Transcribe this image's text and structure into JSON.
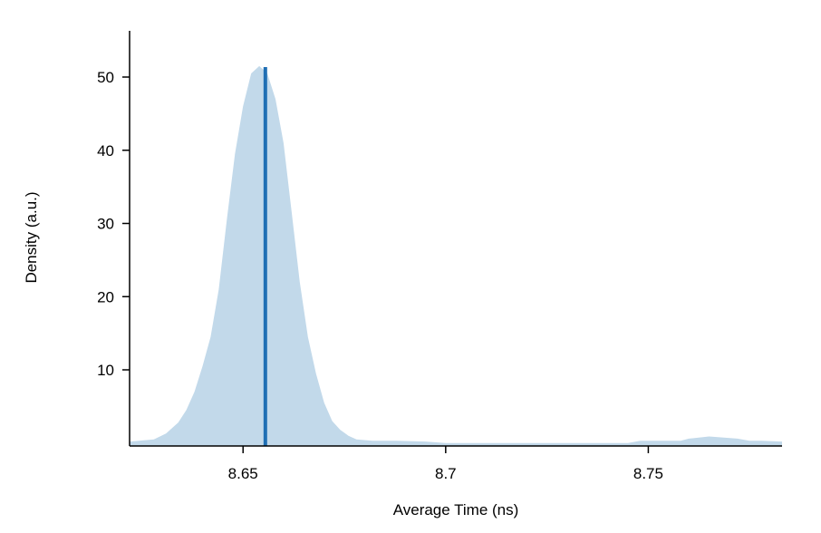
{
  "chart_data": {
    "type": "area",
    "title": "",
    "xlabel": "Average Time (ns)",
    "ylabel": "Density (a.u.)",
    "xlim": [
      8.622,
      8.783
    ],
    "ylim": [
      0,
      55
    ],
    "x_ticks": [
      8.65,
      8.7,
      8.75
    ],
    "x_tick_labels": [
      "8.65",
      "8.7",
      "8.75"
    ],
    "y_ticks": [
      10,
      20,
      30,
      40,
      50
    ],
    "y_tick_labels": [
      "10",
      "20",
      "30",
      "40",
      "50"
    ],
    "grid": false,
    "legend": "none",
    "colors": {
      "fill": "#c2d9ea",
      "marker": "#1f6fb4",
      "axis": "#000000"
    },
    "series": [
      {
        "x": [
          8.622,
          8.628,
          8.631,
          8.634,
          8.636,
          8.638,
          8.64,
          8.642,
          8.644,
          8.646,
          8.648,
          8.65,
          8.652,
          8.654,
          8.655,
          8.656,
          8.658,
          8.66,
          8.662,
          8.664,
          8.666,
          8.668,
          8.67,
          8.672,
          8.674,
          8.676,
          8.678,
          8.682,
          8.688,
          8.695,
          8.7,
          8.72,
          8.745,
          8.748,
          8.752,
          8.758,
          8.76,
          8.765,
          8.772,
          8.775,
          8.778,
          8.783
        ],
        "values": [
          0.2,
          0.5,
          1.3,
          2.8,
          4.5,
          7.0,
          10.5,
          14.5,
          21.0,
          30.5,
          39.5,
          46.0,
          50.5,
          51.5,
          51.0,
          50.5,
          47.0,
          41.0,
          31.5,
          22.0,
          14.5,
          9.5,
          5.5,
          3.0,
          1.8,
          1.0,
          0.5,
          0.3,
          0.3,
          0.2,
          0.0,
          0.0,
          0.0,
          0.3,
          0.3,
          0.3,
          0.6,
          0.9,
          0.6,
          0.3,
          0.3,
          0.2
        ]
      }
    ],
    "marker_x": 8.6555
  }
}
